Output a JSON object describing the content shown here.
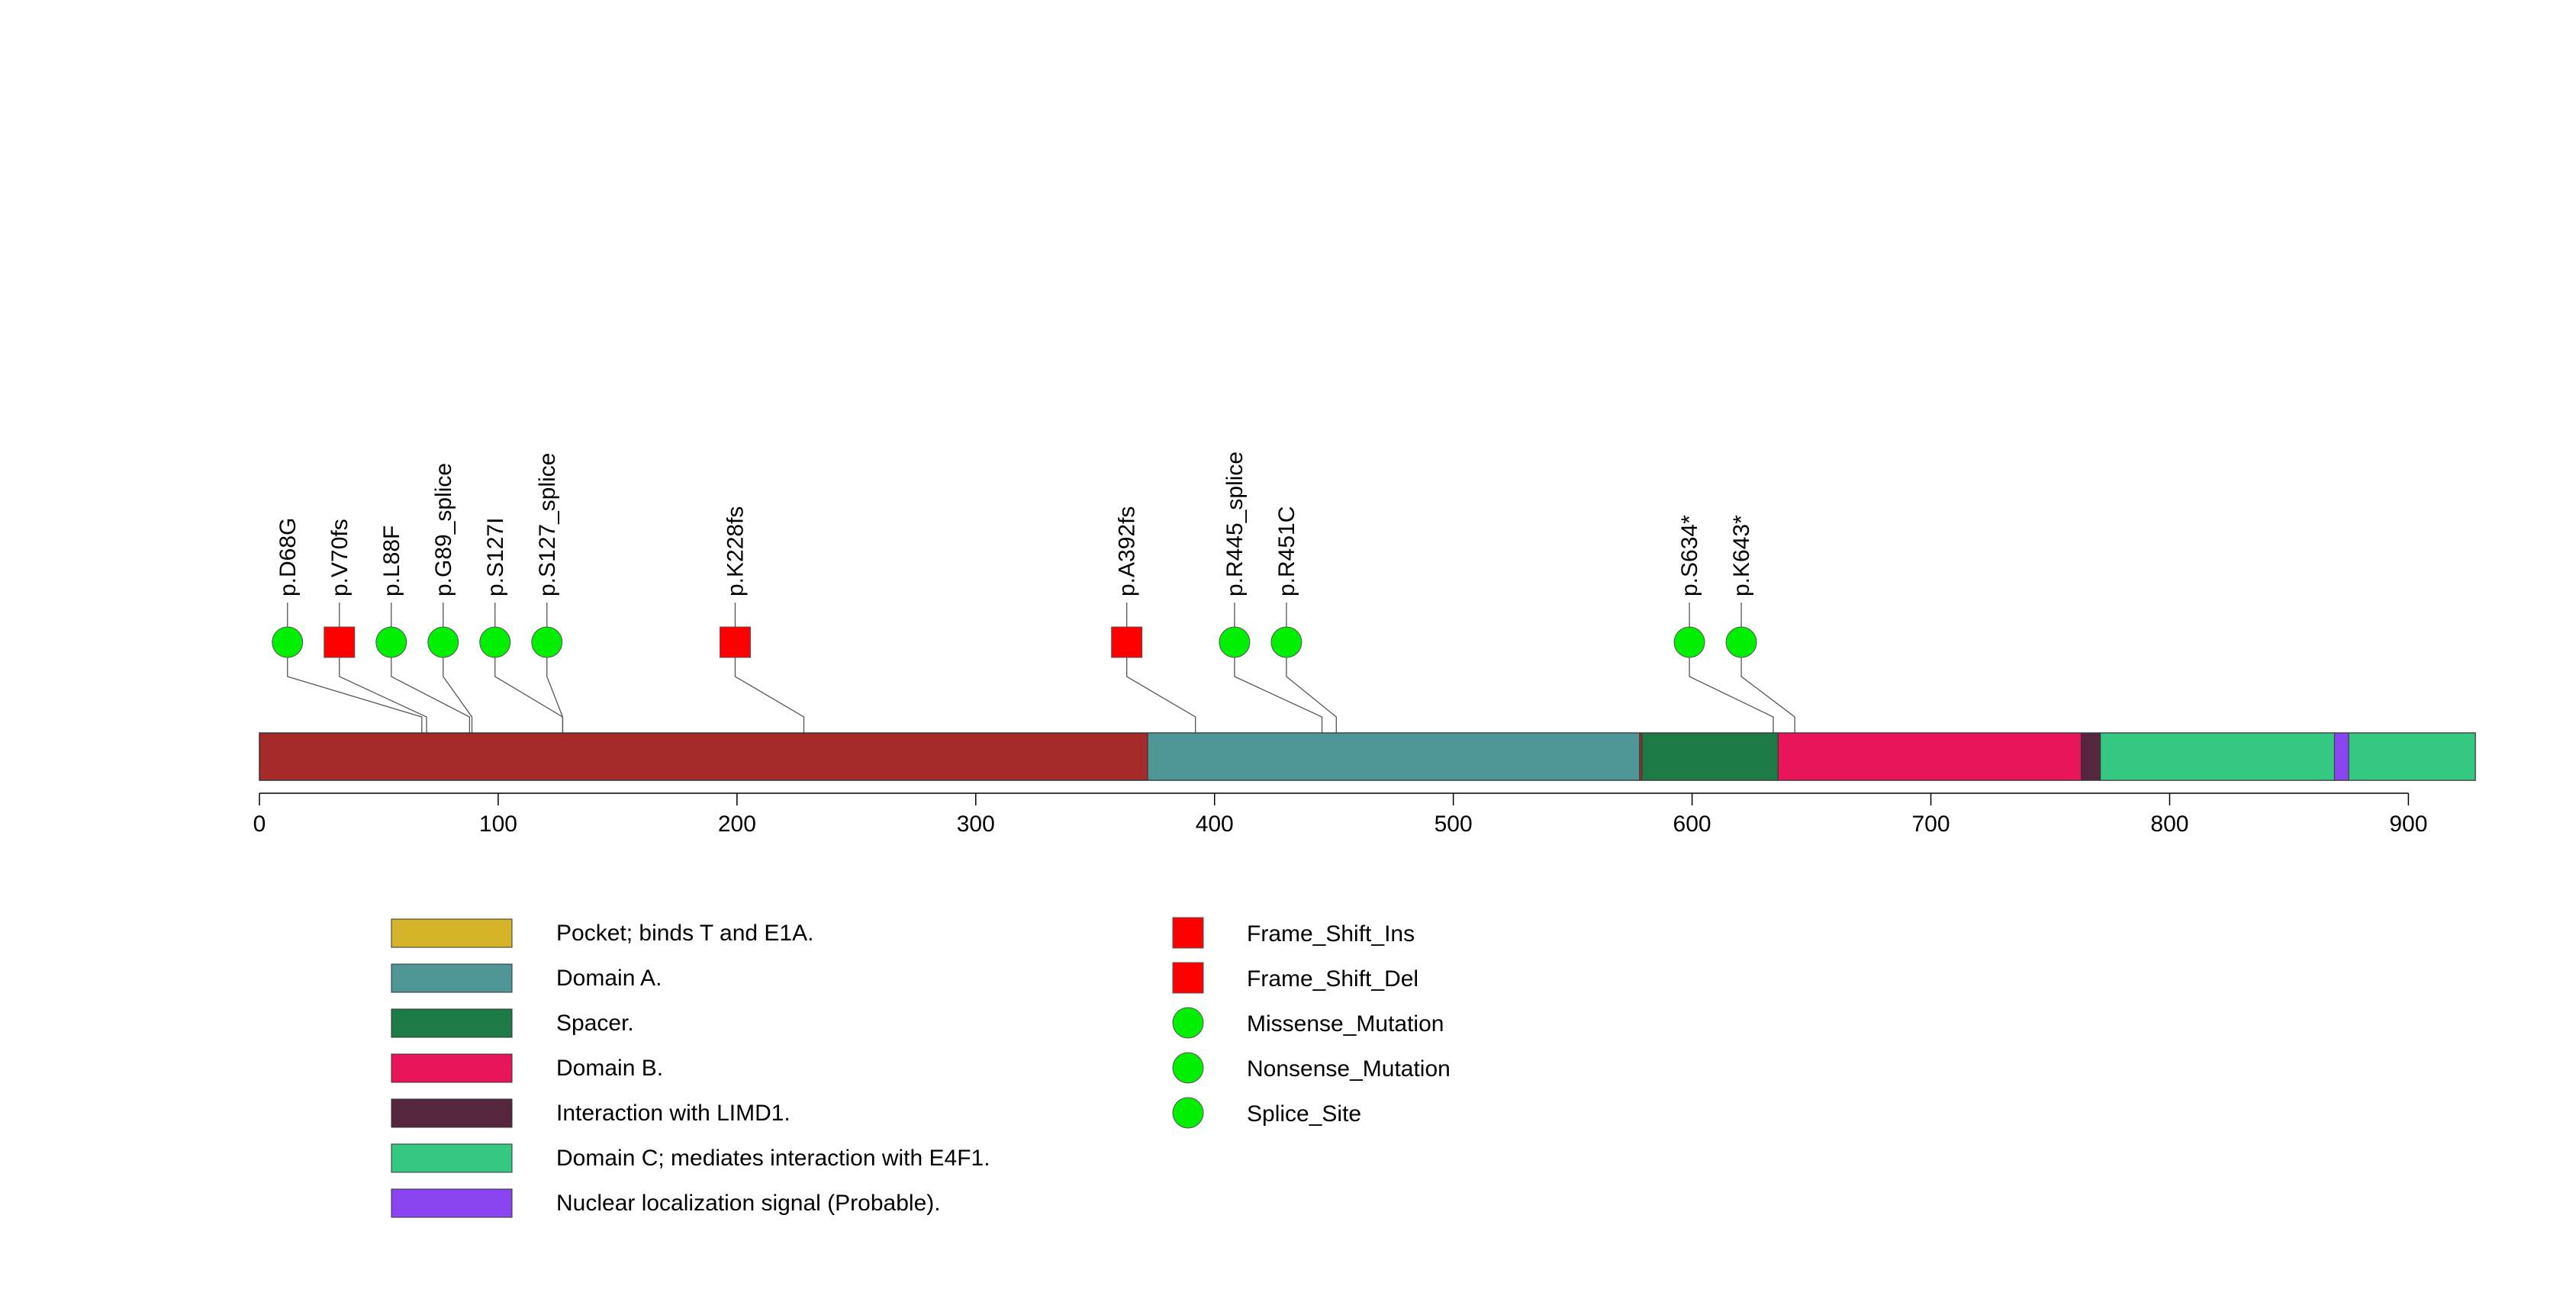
{
  "chart_data": {
    "type": "lollipop",
    "xlim": [
      0,
      928
    ],
    "xticks": [
      0,
      100,
      200,
      300,
      400,
      500,
      600,
      700,
      800,
      900
    ],
    "protein_background_color": "#A52A2A",
    "domains": [
      {
        "name": "Pocket; binds T and E1A.",
        "start": 372,
        "end": 578,
        "color": "#D4B52A",
        "show_bar": false
      },
      {
        "name": "Domain A.",
        "start": 372,
        "end": 578,
        "color": "#4F9696"
      },
      {
        "name": "Spacer.",
        "start": 579,
        "end": 636,
        "color": "#1E7A46"
      },
      {
        "name": "Domain B.",
        "start": 636,
        "end": 763,
        "color": "#E8155A"
      },
      {
        "name": "Interaction with LIMD1.",
        "start": 763,
        "end": 771,
        "color": "#55263D"
      },
      {
        "name": "Domain C; mediates interaction with E4F1.",
        "start": 771,
        "end": 928,
        "color": "#35C882"
      },
      {
        "name": "Nuclear localization signal (Probable).",
        "start": 869,
        "end": 875,
        "color": "#8A44F0"
      }
    ],
    "mutations": [
      {
        "label": "p.D68G",
        "position": 68,
        "marker": "circle"
      },
      {
        "label": "p.V70fs",
        "position": 70,
        "marker": "square"
      },
      {
        "label": "p.L88F",
        "position": 88,
        "marker": "circle"
      },
      {
        "label": "p.G89_splice",
        "position": 89,
        "marker": "circle"
      },
      {
        "label": "p.S127I",
        "position": 127,
        "marker": "circle"
      },
      {
        "label": "p.S127_splice",
        "position": 127,
        "marker": "circle"
      },
      {
        "label": "p.K228fs",
        "position": 228,
        "marker": "square"
      },
      {
        "label": "p.A392fs",
        "position": 392,
        "marker": "square"
      },
      {
        "label": "p.R445_splice",
        "position": 445,
        "marker": "circle"
      },
      {
        "label": "p.R451C",
        "position": 451,
        "marker": "circle"
      },
      {
        "label": "p.S634*",
        "position": 634,
        "marker": "circle"
      },
      {
        "label": "p.K643*",
        "position": 643,
        "marker": "circle"
      }
    ],
    "mutation_legend": [
      {
        "label": "Frame_Shift_Ins",
        "marker": "square",
        "color": "#FF0000"
      },
      {
        "label": "Frame_Shift_Del",
        "marker": "square",
        "color": "#FF0000"
      },
      {
        "label": "Missense_Mutation",
        "marker": "circle",
        "color": "#00EE00"
      },
      {
        "label": "Nonsense_Mutation",
        "marker": "circle",
        "color": "#00EE00"
      },
      {
        "label": "Splice_Site",
        "marker": "circle",
        "color": "#00EE00"
      }
    ]
  }
}
